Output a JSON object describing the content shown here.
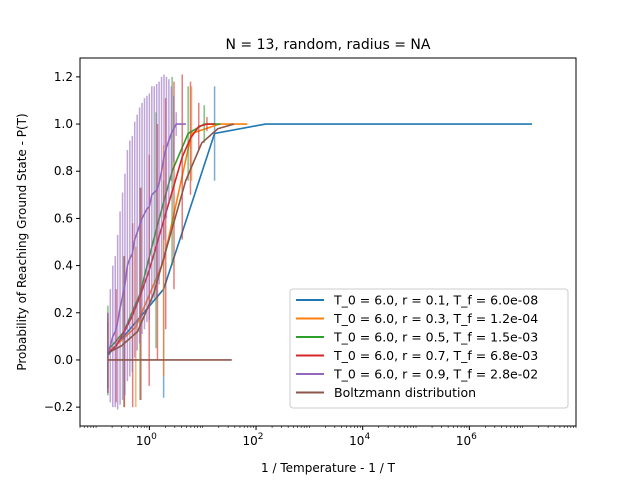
{
  "chart_data": {
    "type": "line",
    "title": "N = 13, random, radius = NA",
    "xlabel": "1 / Temperature - 1 / T",
    "ylabel": "Probability of Reaching Ground State - P(T)",
    "x_scale": "log",
    "xlim": [
      0.05,
      100000000
    ],
    "ylim": [
      -0.28,
      1.28
    ],
    "x_ticks": [
      {
        "value": 1,
        "base": "10",
        "exp": "0"
      },
      {
        "value": 100,
        "base": "10",
        "exp": "2"
      },
      {
        "value": 10000,
        "base": "10",
        "exp": "4"
      },
      {
        "value": 1000000,
        "base": "10",
        "exp": "6"
      }
    ],
    "y_ticks": [
      {
        "value": -0.2,
        "label": "−0.2"
      },
      {
        "value": 0.0,
        "label": "0.0"
      },
      {
        "value": 0.2,
        "label": "0.2"
      },
      {
        "value": 0.4,
        "label": "0.4"
      },
      {
        "value": 0.6,
        "label": "0.6"
      },
      {
        "value": 0.8,
        "label": "0.8"
      },
      {
        "value": 1.0,
        "label": "1.0"
      },
      {
        "value": 1.2,
        "label": "1.2"
      }
    ],
    "grid": false,
    "legend_position": "lower right",
    "series": [
      {
        "name": "T_0 = 6.0, r = 0.1, T_f = 6.0e-08",
        "color": "#1f77b4",
        "x": [
          0.1667,
          1.85,
          16.7,
          150,
          1500,
          15000,
          150000,
          1500000,
          15000000
        ],
        "y": [
          0.02,
          0.3,
          0.96,
          1.0,
          1.0,
          1.0,
          1.0,
          1.0,
          1.0
        ],
        "err": [
          0.14,
          0.46,
          0.2,
          0,
          0,
          0,
          0,
          0,
          0
        ]
      },
      {
        "name": "T_0 = 6.0, r = 0.3, T_f = 1.2e-04",
        "color": "#ff7f0e",
        "x": [
          0.1667,
          0.556,
          1.85,
          6.17,
          20.6,
          68.6
        ],
        "y": [
          0.03,
          0.14,
          0.42,
          0.96,
          1.0,
          1.0
        ],
        "err": [
          0.15,
          0.34,
          0.49,
          0.2,
          0,
          0
        ]
      },
      {
        "name": "T_0 = 6.0, r = 0.5, T_f = 1.5e-03",
        "color": "#2ca02c",
        "x": [
          0.1667,
          0.333,
          0.667,
          1.333,
          2.667,
          5.333,
          10.67,
          21.3
        ],
        "y": [
          0.04,
          0.12,
          0.28,
          0.55,
          0.8,
          0.96,
          1.0,
          1.0
        ],
        "err": [
          0.19,
          0.32,
          0.45,
          0.5,
          0.4,
          0.2,
          0.08,
          0
        ]
      },
      {
        "name": "T_0 = 6.0, r = 0.7, T_f = 6.8e-03",
        "color": "#d62728",
        "x": [
          0.1667,
          0.238,
          0.34,
          0.486,
          0.694,
          0.992,
          1.417,
          2.024,
          2.892,
          4.131,
          5.9,
          8.43,
          12.0,
          17.2
        ],
        "y": [
          0.03,
          0.06,
          0.12,
          0.19,
          0.28,
          0.38,
          0.5,
          0.62,
          0.74,
          0.86,
          0.94,
          0.99,
          1.0,
          1.0
        ],
        "err": [
          0.17,
          0.24,
          0.32,
          0.39,
          0.45,
          0.49,
          0.5,
          0.49,
          0.44,
          0.35,
          0.24,
          0.1,
          0.03,
          0
        ]
      },
      {
        "name": "T_0 = 6.0, r = 0.9, T_f = 2.8e-02",
        "color": "#9467bd",
        "x": [
          0.1667,
          0.185,
          0.206,
          0.229,
          0.254,
          0.282,
          0.314,
          0.348,
          0.387,
          0.43,
          0.478,
          0.531,
          0.59,
          0.655,
          0.728,
          0.809,
          0.899,
          0.999,
          1.11,
          1.233,
          1.37,
          1.522,
          1.691,
          1.879,
          2.088,
          2.32,
          2.578,
          2.864,
          3.182,
          3.536,
          3.929,
          4.365,
          4.85
        ],
        "y": [
          0.03,
          0.06,
          0.1,
          0.12,
          0.16,
          0.22,
          0.27,
          0.32,
          0.4,
          0.43,
          0.45,
          0.51,
          0.54,
          0.57,
          0.6,
          0.62,
          0.64,
          0.65,
          0.7,
          0.71,
          0.72,
          0.75,
          0.8,
          0.86,
          0.9,
          0.93,
          0.96,
          0.98,
          1.0,
          1.0,
          1.0,
          1.0,
          1.0
        ],
        "err": [
          0.17,
          0.24,
          0.3,
          0.32,
          0.37,
          0.41,
          0.44,
          0.47,
          0.49,
          0.5,
          0.5,
          0.5,
          0.5,
          0.5,
          0.49,
          0.49,
          0.48,
          0.48,
          0.46,
          0.45,
          0.45,
          0.43,
          0.4,
          0.35,
          0.3,
          0.26,
          0.2,
          0.14,
          0.05,
          0,
          0,
          0,
          0
        ]
      },
      {
        "name": "Boltzmann distribution",
        "color": "#8c564b",
        "x": [
          0.1667,
          0.3,
          0.6,
          1.2,
          2.4,
          4.8,
          9.6,
          19.2,
          38.4
        ],
        "y": [
          0.03,
          0.06,
          0.12,
          0.28,
          0.52,
          0.76,
          0.92,
          0.98,
          1.0
        ],
        "err": [
          0,
          0,
          0,
          0,
          0,
          0,
          0,
          0,
          0
        ],
        "flat_line": {
          "x": [
            0.1667,
            35
          ],
          "y": [
            0.0,
            0.0
          ]
        }
      }
    ]
  }
}
